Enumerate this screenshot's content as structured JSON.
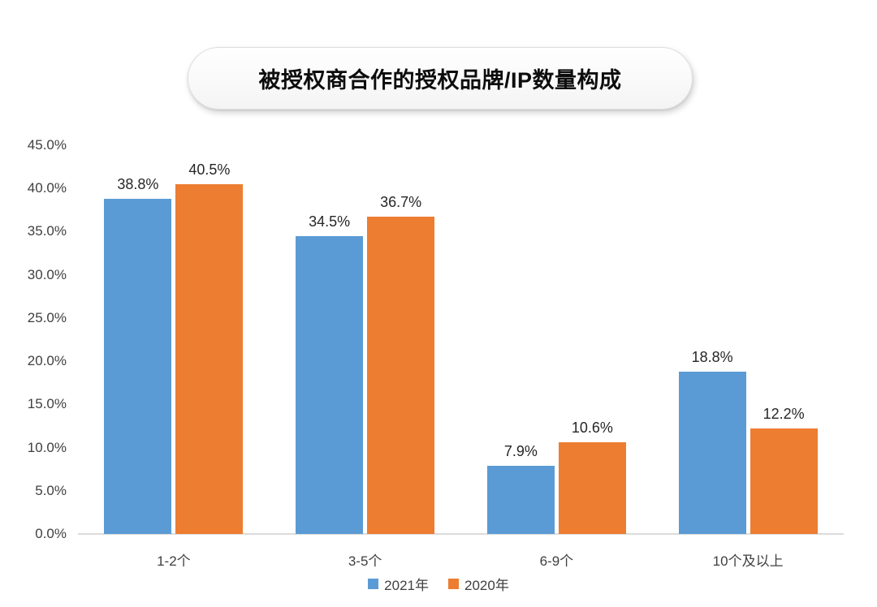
{
  "chart_data": {
    "type": "bar",
    "title": "被授权商合作的授权品牌/IP数量构成",
    "categories": [
      "1-2个",
      "3-5个",
      "6-9个",
      "10个及以上"
    ],
    "series": [
      {
        "name": "2021年",
        "color": "#5B9BD5",
        "values": [
          38.8,
          34.5,
          7.9,
          18.8
        ]
      },
      {
        "name": "2020年",
        "color": "#ED7D31",
        "values": [
          40.5,
          36.7,
          10.6,
          12.2
        ]
      }
    ],
    "value_labels": [
      [
        "38.8%",
        "34.5%",
        "7.9%",
        "18.8%"
      ],
      [
        "40.5%",
        "36.7%",
        "10.6%",
        "12.2%"
      ]
    ],
    "xlabel": "",
    "ylabel": "",
    "ylim": [
      0,
      45
    ],
    "ytick_step": 5,
    "ytick_labels": [
      "0.0%",
      "5.0%",
      "10.0%",
      "15.0%",
      "20.0%",
      "25.0%",
      "30.0%",
      "35.0%",
      "40.0%",
      "45.0%"
    ],
    "grid": false,
    "legend_position": "bottom",
    "baseline_color": "#dcdcdc"
  }
}
